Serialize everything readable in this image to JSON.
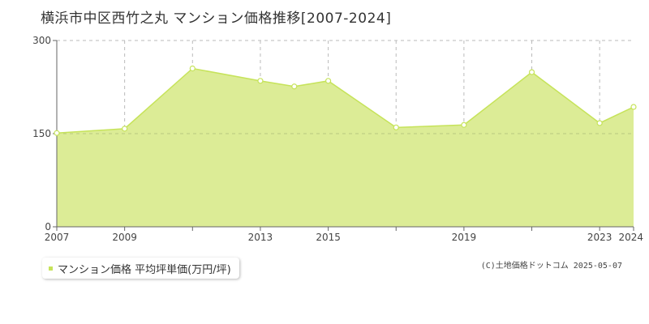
{
  "title": "横浜市中区西竹之丸 マンション価格推移[2007-2024]",
  "legend": {
    "label": "マンション価格 平均坪単価(万円/坪)"
  },
  "copyright": "(C)土地価格ドットコム 2025-05-07",
  "colors": {
    "fill": "#dcec96",
    "line": "#c6e35a",
    "grid": "#bbbbbb",
    "axis": "#666666"
  },
  "chart_data": {
    "type": "area",
    "x": [
      2007,
      2009,
      2011,
      2013,
      2014,
      2015,
      2017,
      2019,
      2021,
      2023,
      2024
    ],
    "values": [
      151,
      158,
      255,
      235,
      226,
      235,
      160,
      164,
      249,
      167,
      193
    ],
    "series_name": "マンション価格 平均坪単価(万円/坪)",
    "xlim": [
      2007,
      2024
    ],
    "ylim": [
      0,
      300
    ],
    "y_ticks": [
      0,
      150,
      300
    ],
    "x_tick_labels": [
      "2007",
      "2009",
      "2013",
      "2015",
      "2019",
      "2023",
      "2024"
    ],
    "grid": true,
    "legend_position": "bottom-left"
  }
}
